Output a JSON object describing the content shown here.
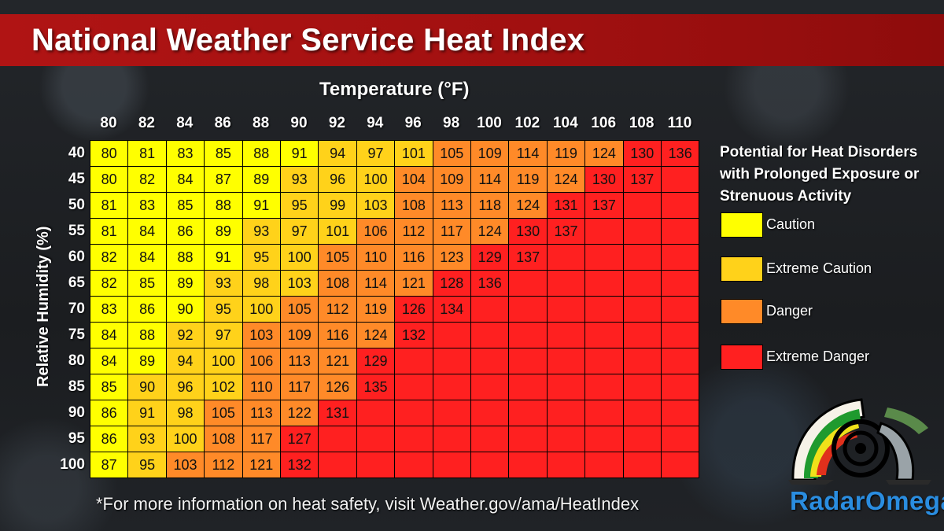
{
  "title": "National Weather Service Heat Index",
  "chart_data": {
    "type": "heatmap",
    "xlabel": "Temperature (°F)",
    "ylabel": "Relative Humidity (%)",
    "temperatures": [
      "80",
      "82",
      "84",
      "86",
      "88",
      "90",
      "92",
      "94",
      "96",
      "98",
      "100",
      "102",
      "104",
      "106",
      "108",
      "110"
    ],
    "humidities": [
      "40",
      "45",
      "50",
      "55",
      "60",
      "65",
      "70",
      "75",
      "80",
      "85",
      "90",
      "95",
      "100"
    ],
    "values": [
      [
        80,
        81,
        83,
        85,
        88,
        91,
        94,
        97,
        101,
        105,
        109,
        114,
        119,
        124,
        130,
        136
      ],
      [
        80,
        82,
        84,
        87,
        89,
        93,
        96,
        100,
        104,
        109,
        114,
        119,
        124,
        130,
        137,
        null
      ],
      [
        81,
        83,
        85,
        88,
        91,
        95,
        99,
        103,
        108,
        113,
        118,
        124,
        131,
        137,
        null,
        null
      ],
      [
        81,
        84,
        86,
        89,
        93,
        97,
        101,
        106,
        112,
        117,
        124,
        130,
        137,
        null,
        null,
        null
      ],
      [
        82,
        84,
        88,
        91,
        95,
        100,
        105,
        110,
        116,
        123,
        129,
        137,
        null,
        null,
        null,
        null
      ],
      [
        82,
        85,
        89,
        93,
        98,
        103,
        108,
        114,
        121,
        128,
        136,
        null,
        null,
        null,
        null,
        null
      ],
      [
        83,
        86,
        90,
        95,
        100,
        105,
        112,
        119,
        126,
        134,
        null,
        null,
        null,
        null,
        null,
        null
      ],
      [
        84,
        88,
        92,
        97,
        103,
        109,
        116,
        124,
        132,
        null,
        null,
        null,
        null,
        null,
        null,
        null
      ],
      [
        84,
        89,
        94,
        100,
        106,
        113,
        121,
        129,
        null,
        null,
        null,
        null,
        null,
        null,
        null,
        null
      ],
      [
        85,
        90,
        96,
        102,
        110,
        117,
        126,
        135,
        null,
        null,
        null,
        null,
        null,
        null,
        null,
        null
      ],
      [
        86,
        91,
        98,
        105,
        113,
        122,
        131,
        null,
        null,
        null,
        null,
        null,
        null,
        null,
        null,
        null
      ],
      [
        86,
        93,
        100,
        108,
        117,
        127,
        null,
        null,
        null,
        null,
        null,
        null,
        null,
        null,
        null,
        null
      ],
      [
        87,
        95,
        103,
        112,
        121,
        132,
        null,
        null,
        null,
        null,
        null,
        null,
        null,
        null,
        null,
        null
      ]
    ],
    "categories": [
      [
        0,
        0,
        0,
        0,
        0,
        0,
        1,
        1,
        1,
        2,
        2,
        2,
        2,
        2,
        3,
        3
      ],
      [
        0,
        0,
        0,
        0,
        0,
        1,
        1,
        1,
        2,
        2,
        2,
        2,
        2,
        3,
        3,
        3
      ],
      [
        0,
        0,
        0,
        0,
        0,
        1,
        1,
        1,
        2,
        2,
        2,
        2,
        3,
        3,
        3,
        3
      ],
      [
        0,
        0,
        0,
        0,
        1,
        1,
        1,
        2,
        2,
        2,
        2,
        3,
        3,
        3,
        3,
        3
      ],
      [
        0,
        0,
        0,
        0,
        1,
        1,
        2,
        2,
        2,
        2,
        3,
        3,
        3,
        3,
        3,
        3
      ],
      [
        0,
        0,
        0,
        1,
        1,
        1,
        2,
        2,
        2,
        3,
        3,
        3,
        3,
        3,
        3,
        3
      ],
      [
        0,
        0,
        0,
        1,
        1,
        2,
        2,
        2,
        3,
        3,
        3,
        3,
        3,
        3,
        3,
        3
      ],
      [
        0,
        0,
        1,
        1,
        2,
        2,
        2,
        2,
        3,
        3,
        3,
        3,
        3,
        3,
        3,
        3
      ],
      [
        0,
        0,
        1,
        1,
        2,
        2,
        2,
        3,
        3,
        3,
        3,
        3,
        3,
        3,
        3,
        3
      ],
      [
        0,
        1,
        1,
        1,
        2,
        2,
        2,
        3,
        3,
        3,
        3,
        3,
        3,
        3,
        3,
        3
      ],
      [
        0,
        1,
        1,
        2,
        2,
        2,
        3,
        3,
        3,
        3,
        3,
        3,
        3,
        3,
        3,
        3
      ],
      [
        0,
        1,
        1,
        2,
        2,
        3,
        3,
        3,
        3,
        3,
        3,
        3,
        3,
        3,
        3,
        3
      ],
      [
        0,
        1,
        2,
        2,
        2,
        3,
        3,
        3,
        3,
        3,
        3,
        3,
        3,
        3,
        3,
        3
      ]
    ],
    "legend": {
      "title": "Potential for Heat Disorders with Prolonged Exposure or Strenuous Activity",
      "levels": [
        {
          "label": "Caution",
          "color": "#ffff00"
        },
        {
          "label": "Extreme Caution",
          "color": "#ffd21a"
        },
        {
          "label": "Danger",
          "color": "#ff8a28"
        },
        {
          "label": "Extreme Danger",
          "color": "#ff2020"
        }
      ]
    }
  },
  "footnote": "*For more information on heat safety, visit Weather.gov/ama/HeatIndex",
  "brand": "RadarOmega"
}
